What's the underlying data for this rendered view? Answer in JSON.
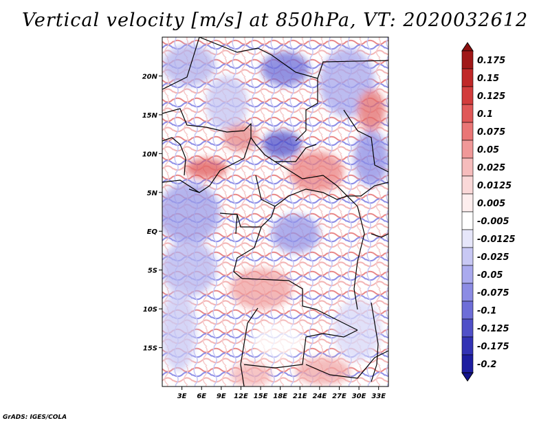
{
  "title": "Vertical velocity [m/s] at 850hPa, VT: 2020032612",
  "footer": "GrADS: IGES/COLA",
  "chart_data": {
    "type": "heatmap",
    "variable": "Vertical velocity",
    "units": "m/s",
    "level": "850hPa",
    "valid_time": "2020032612",
    "lon_range": [
      0,
      34.5
    ],
    "lat_range": [
      -20,
      25
    ],
    "x_ticks": [
      {
        "value": 3,
        "label": "3E"
      },
      {
        "value": 6,
        "label": "6E"
      },
      {
        "value": 9,
        "label": "9E"
      },
      {
        "value": 12,
        "label": "12E"
      },
      {
        "value": 15,
        "label": "15E"
      },
      {
        "value": 18,
        "label": "18E"
      },
      {
        "value": 21,
        "label": "21E"
      },
      {
        "value": 24,
        "label": "24E"
      },
      {
        "value": 27,
        "label": "27E"
      },
      {
        "value": 30,
        "label": "30E"
      },
      {
        "value": 33,
        "label": "33E"
      }
    ],
    "y_ticks": [
      {
        "value": 20,
        "label": "20N"
      },
      {
        "value": 15,
        "label": "15N"
      },
      {
        "value": 10,
        "label": "10N"
      },
      {
        "value": 5,
        "label": "5N"
      },
      {
        "value": 0,
        "label": "EQ"
      },
      {
        "value": -5,
        "label": "5S"
      },
      {
        "value": -10,
        "label": "10S"
      },
      {
        "value": -15,
        "label": "15S"
      }
    ],
    "colorbar": [
      {
        "label": "0.175",
        "color": "#a01818"
      },
      {
        "label": "0.15",
        "color": "#c02828"
      },
      {
        "label": "0.125",
        "color": "#d23c3c"
      },
      {
        "label": "0.1",
        "color": "#e05858"
      },
      {
        "label": "0.075",
        "color": "#ea7676"
      },
      {
        "label": "0.05",
        "color": "#f09898"
      },
      {
        "label": "0.025",
        "color": "#f6bcbc"
      },
      {
        "label": "0.0125",
        "color": "#fad8d8"
      },
      {
        "label": "0.005",
        "color": "#fdeeee"
      },
      {
        "label": "-0.005",
        "color": "#ffffff"
      },
      {
        "label": "-0.0125",
        "color": "#e6e6fa"
      },
      {
        "label": "-0.025",
        "color": "#c8c8f4"
      },
      {
        "label": "-0.05",
        "color": "#aaaaee"
      },
      {
        "label": "-0.075",
        "color": "#8c8ce4"
      },
      {
        "label": "-0.1",
        "color": "#6e6ed8"
      },
      {
        "label": "-0.125",
        "color": "#5050c8"
      },
      {
        "label": "-0.175",
        "color": "#3232b4"
      },
      {
        "label": "-0.2",
        "color": "#1e1ea0"
      }
    ],
    "colorbar_ends": {
      "top_color": "#8c1010",
      "bottom_color": "#14148c"
    }
  }
}
